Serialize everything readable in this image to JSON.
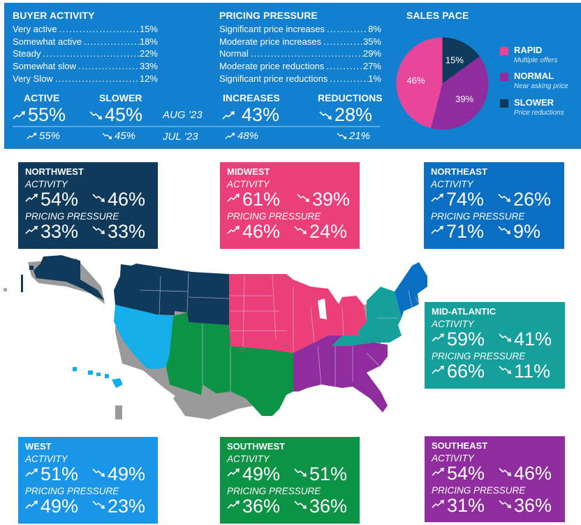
{
  "buyer_activity": {
    "title": "BUYER ACTIVITY",
    "items": [
      {
        "label": "Very active",
        "value": "15%"
      },
      {
        "label": "Somewhat active",
        "value": "18%"
      },
      {
        "label": "Steady",
        "value": "22%"
      },
      {
        "label": "Somewhat slow",
        "value": "33%"
      },
      {
        "label": "Very Slow",
        "value": "12%"
      }
    ],
    "active_label": "ACTIVE",
    "slower_label": "SLOWER",
    "current": {
      "active": "55%",
      "slower": "45%"
    },
    "previous": {
      "active": "55%",
      "slower": "45%"
    }
  },
  "periods": {
    "current": "AUG ’23",
    "previous": "JUL ’23"
  },
  "pricing_pressure": {
    "title": "PRICING PRESSURE",
    "items": [
      {
        "label": "Significant price increases",
        "value": "8%"
      },
      {
        "label": "Moderate price increases",
        "value": "35%"
      },
      {
        "label": "Normal",
        "value": "29%"
      },
      {
        "label": "Moderate price reductions",
        "value": "27%"
      },
      {
        "label": "Significant price reductions",
        "value": "1%"
      }
    ],
    "increases_label": "INCREASES",
    "reductions_label": "REDUCTIONS",
    "current": {
      "increases": "43%",
      "reductions": "28%"
    },
    "previous": {
      "increases": "48%",
      "reductions": "21%"
    }
  },
  "icons": {
    "up": "trend-up-arrow-icon",
    "down": "trend-down-arrow-icon"
  },
  "colors": {
    "panel": "#1380cf",
    "rapid": "#e8469a",
    "normal": "#8f2d9e",
    "slower": "#0f3a5c",
    "northwest": "#0f3a5c",
    "midwest": "#ec3f7a",
    "northeast": "#0a6fc2",
    "mid_atlantic": "#16a09c",
    "west": "#1a96e8",
    "southwest": "#0d9346",
    "southeast": "#8f2d9e",
    "map_west": "#14aeea"
  },
  "chart_data": {
    "type": "pie",
    "title": "SALES PACE",
    "slices": [
      {
        "name": "SLOWER",
        "description": "Price reductions",
        "value": 15,
        "label": "15%"
      },
      {
        "name": "NORMAL",
        "description": "Near asking price",
        "value": 39,
        "label": "39%"
      },
      {
        "name": "RAPID",
        "description": "Multiple offers",
        "value": 46,
        "label": "46%"
      }
    ],
    "legend": [
      {
        "name": "RAPID",
        "description": "Multiple offers"
      },
      {
        "name": "NORMAL",
        "description": "Near asking price"
      },
      {
        "name": "SLOWER",
        "description": "Price reductions"
      }
    ],
    "legend_position": "right"
  },
  "labels": {
    "activity": "ACTIVITY",
    "pricing_pressure": "PRICING PRESSURE"
  },
  "regions": {
    "northwest": {
      "name": "NORTHWEST",
      "activity_up": "54%",
      "activity_down": "46%",
      "pricing_up": "33%",
      "pricing_down": "33%"
    },
    "midwest": {
      "name": "MIDWEST",
      "activity_up": "61%",
      "activity_down": "39%",
      "pricing_up": "46%",
      "pricing_down": "24%"
    },
    "northeast": {
      "name": "NORTHEAST",
      "activity_up": "74%",
      "activity_down": "26%",
      "pricing_up": "71%",
      "pricing_down": "9%"
    },
    "mid_atlantic": {
      "name": "MID-ATLANTIC",
      "activity_up": "59%",
      "activity_down": "41%",
      "pricing_up": "66%",
      "pricing_down": "11%"
    },
    "west": {
      "name": "WEST",
      "activity_up": "51%",
      "activity_down": "49%",
      "pricing_up": "49%",
      "pricing_down": "23%"
    },
    "southwest": {
      "name": "SOUTHWEST",
      "activity_up": "49%",
      "activity_down": "51%",
      "pricing_up": "36%",
      "pricing_down": "36%"
    },
    "southeast": {
      "name": "SOUTHEAST",
      "activity_up": "54%",
      "activity_down": "46%",
      "pricing_up": "31%",
      "pricing_down": "36%"
    }
  }
}
